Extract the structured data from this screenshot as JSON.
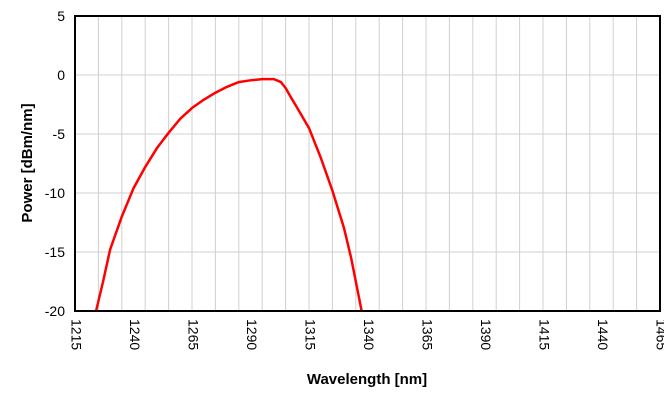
{
  "chart_data": {
    "type": "line",
    "xlabel": "Wavelength [nm]",
    "ylabel": "Power [dBm/nm]",
    "xlim": [
      1215,
      1465
    ],
    "ylim": [
      -20,
      5
    ],
    "x_ticks": [
      "1215",
      "1240",
      "1265",
      "1290",
      "1315",
      "1340",
      "1365",
      "1390",
      "1415",
      "1440",
      "1465"
    ],
    "y_ticks": [
      "5",
      "0",
      "-5",
      "-10",
      "-15",
      "-20"
    ],
    "grid": true,
    "legend": "none",
    "series": [
      {
        "color": "#ff0000",
        "x": [
          1224,
          1227,
          1230,
          1235,
          1240,
          1245,
          1250,
          1255,
          1260,
          1265,
          1270,
          1275,
          1280,
          1285,
          1290,
          1295,
          1300,
          1303,
          1305,
          1307,
          1310,
          1315,
          1320,
          1325,
          1330,
          1333,
          1335,
          1336,
          1337,
          1337.5
        ],
        "y": [
          -20,
          -17.5,
          -14.8,
          -12.0,
          -9.6,
          -7.8,
          -6.2,
          -4.9,
          -3.7,
          -2.8,
          -2.1,
          -1.5,
          -1.0,
          -0.6,
          -0.45,
          -0.35,
          -0.35,
          -0.6,
          -1.1,
          -1.8,
          -2.8,
          -4.5,
          -7.0,
          -9.8,
          -13.0,
          -15.5,
          -17.5,
          -18.5,
          -19.5,
          -20
        ]
      }
    ]
  }
}
